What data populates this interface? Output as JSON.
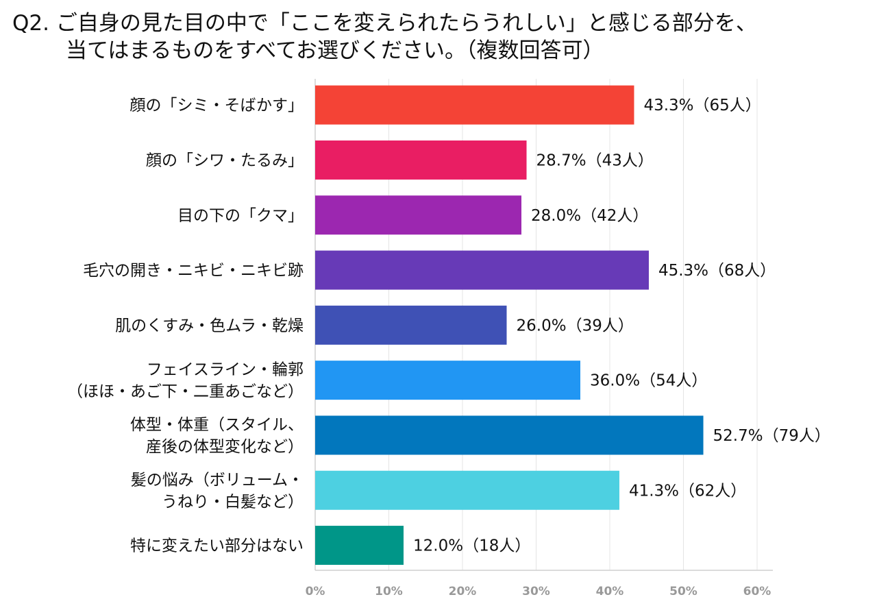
{
  "title": {
    "line1": "Q2. ご自身の見た目の中で「ここを変えられたらうれしい」と感じる部分を、",
    "line2": "当てはまるものをすべてお選びください。（複数回答可）"
  },
  "chart_data": {
    "type": "bar",
    "orientation": "horizontal",
    "categories": [
      [
        "顔の「シミ・そばかす」"
      ],
      [
        "顔の「シワ・たるみ」"
      ],
      [
        "目の下の「クマ」"
      ],
      [
        "毛穴の開き・ニキビ・ニキビ跡"
      ],
      [
        "肌のくすみ・色ムラ・乾燥"
      ],
      [
        "フェイスライン・輪郭",
        "（ほほ・あご下・二重あごなど）"
      ],
      [
        "体型・体重（スタイル、",
        "産後の体型変化など）"
      ],
      [
        "髪の悩み（ボリューム・",
        "うねり・白髪など）"
      ],
      [
        "特に変えたい部分はない"
      ]
    ],
    "values": [
      43.3,
      28.7,
      28.0,
      45.3,
      26.0,
      36.0,
      52.7,
      41.3,
      12.0
    ],
    "value_labels": [
      "43.3%（65人）",
      "28.7%（43人）",
      "28.0%（42人）",
      "45.3%（68人）",
      "26.0%（39人）",
      "36.0%（54人）",
      "52.7%（79人）",
      "41.3%（62人）",
      "12.0%（18人）"
    ],
    "colors": [
      "#f44336",
      "#e91e63",
      "#9c27b0",
      "#673ab7",
      "#3f51b5",
      "#2196f3",
      "#0277bd",
      "#4dd0e1",
      "#009688"
    ],
    "xlim": [
      0,
      60
    ],
    "xticks": [
      "0%",
      "10%",
      "20%",
      "30%",
      "40%",
      "50%",
      "60%"
    ],
    "grid": true,
    "legend": "none"
  }
}
